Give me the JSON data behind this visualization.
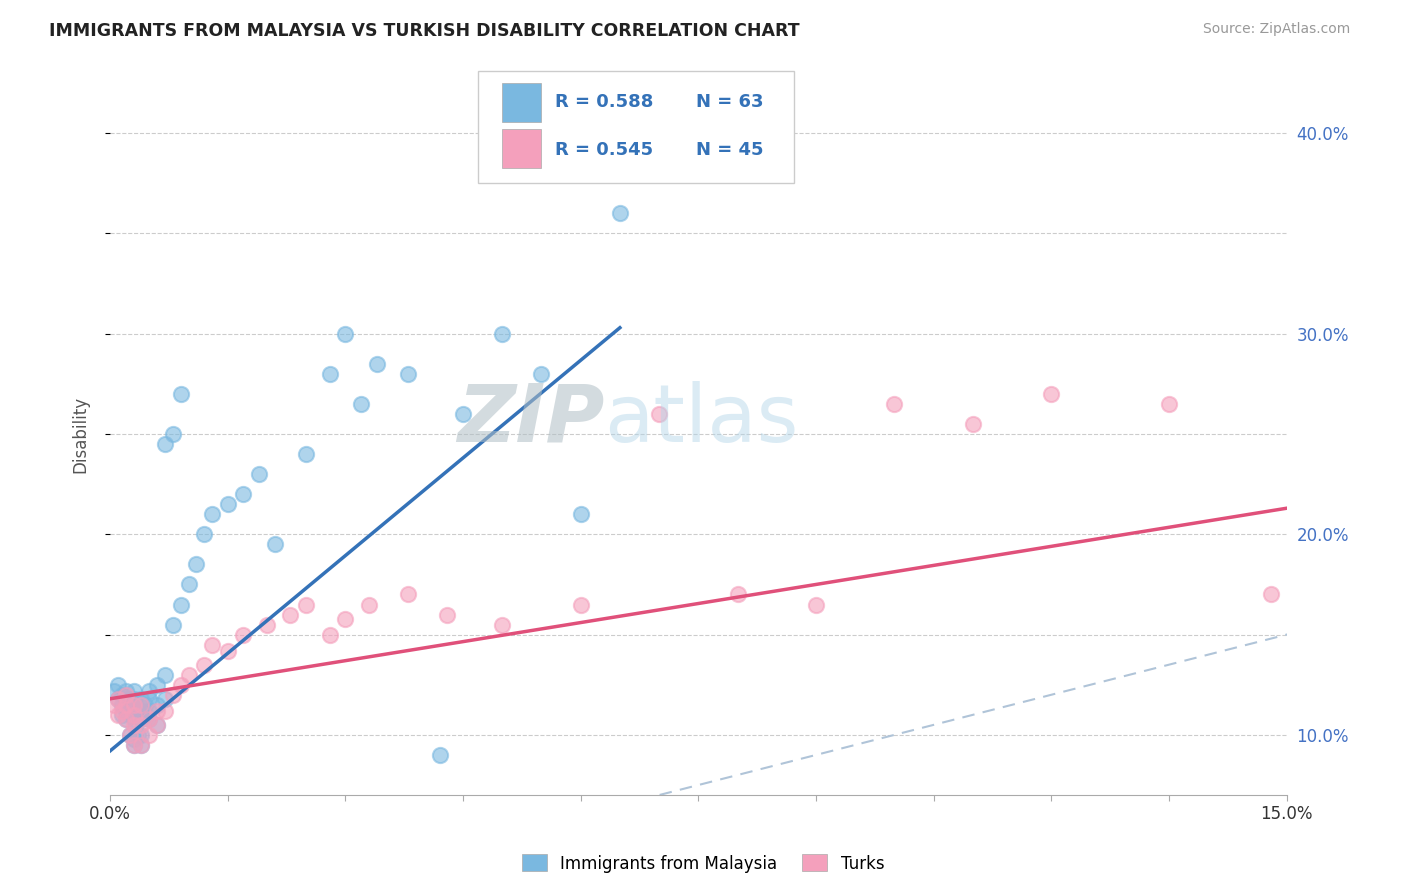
{
  "title": "IMMIGRANTS FROM MALAYSIA VS TURKISH DISABILITY CORRELATION CHART",
  "source": "Source: ZipAtlas.com",
  "ylabel": "Disability",
  "xlim": [
    0.0,
    0.15
  ],
  "ylim": [
    0.07,
    0.43
  ],
  "xticks": [
    0.0,
    0.015,
    0.03,
    0.045,
    0.06,
    0.075,
    0.09,
    0.105,
    0.12,
    0.135,
    0.15
  ],
  "xtick_labels": [
    "0.0%",
    "",
    "",
    "",
    "",
    "",
    "",
    "",
    "",
    "",
    "15.0%"
  ],
  "yticks": [
    0.1,
    0.15,
    0.2,
    0.25,
    0.3,
    0.35,
    0.4
  ],
  "ytick_labels": [
    "10.0%",
    "",
    "20.0%",
    "",
    "30.0%",
    "",
    "40.0%"
  ],
  "blue_color": "#7ab8e0",
  "pink_color": "#f4a0bc",
  "blue_line_color": "#3472b8",
  "pink_line_color": "#e0507a",
  "diagonal_color": "#b0c4d8",
  "watermark_zip": "ZIP",
  "watermark_atlas": "atlas",
  "legend_r1": "R = 0.588",
  "legend_n1": "N = 63",
  "legend_r2": "R = 0.545",
  "legend_n2": "N = 45",
  "blue_line_x0": 0.0,
  "blue_line_y0": 0.092,
  "blue_line_x1": 0.065,
  "blue_line_y1": 0.303,
  "pink_line_x0": 0.0,
  "pink_line_x1": 0.15,
  "pink_line_y0": 0.118,
  "pink_line_y1": 0.213,
  "blue_scatter_x": [
    0.0005,
    0.001,
    0.001,
    0.0015,
    0.0015,
    0.0015,
    0.002,
    0.002,
    0.002,
    0.002,
    0.002,
    0.0025,
    0.0025,
    0.0025,
    0.003,
    0.003,
    0.003,
    0.003,
    0.003,
    0.003,
    0.003,
    0.0035,
    0.0035,
    0.004,
    0.004,
    0.004,
    0.004,
    0.004,
    0.0045,
    0.005,
    0.005,
    0.005,
    0.005,
    0.006,
    0.006,
    0.006,
    0.007,
    0.007,
    0.008,
    0.009,
    0.01,
    0.011,
    0.012,
    0.013,
    0.015,
    0.017,
    0.019,
    0.021,
    0.025,
    0.028,
    0.03,
    0.032,
    0.034,
    0.038,
    0.042,
    0.045,
    0.05,
    0.055,
    0.06,
    0.065,
    0.007,
    0.008,
    0.009
  ],
  "blue_scatter_y": [
    0.122,
    0.118,
    0.125,
    0.11,
    0.115,
    0.12,
    0.108,
    0.112,
    0.115,
    0.118,
    0.122,
    0.1,
    0.112,
    0.118,
    0.095,
    0.098,
    0.108,
    0.112,
    0.115,
    0.118,
    0.122,
    0.1,
    0.112,
    0.095,
    0.1,
    0.108,
    0.112,
    0.118,
    0.115,
    0.108,
    0.112,
    0.118,
    0.122,
    0.105,
    0.115,
    0.125,
    0.118,
    0.13,
    0.155,
    0.165,
    0.175,
    0.185,
    0.2,
    0.21,
    0.215,
    0.22,
    0.23,
    0.195,
    0.24,
    0.28,
    0.3,
    0.265,
    0.285,
    0.28,
    0.09,
    0.26,
    0.3,
    0.28,
    0.21,
    0.36,
    0.245,
    0.25,
    0.27
  ],
  "pink_scatter_x": [
    0.0005,
    0.001,
    0.001,
    0.0015,
    0.002,
    0.002,
    0.002,
    0.0025,
    0.003,
    0.003,
    0.003,
    0.003,
    0.004,
    0.004,
    0.004,
    0.005,
    0.005,
    0.006,
    0.006,
    0.007,
    0.008,
    0.009,
    0.01,
    0.012,
    0.013,
    0.015,
    0.017,
    0.02,
    0.023,
    0.025,
    0.028,
    0.03,
    0.033,
    0.038,
    0.043,
    0.05,
    0.06,
    0.07,
    0.08,
    0.09,
    0.1,
    0.11,
    0.12,
    0.135,
    0.148
  ],
  "pink_scatter_y": [
    0.115,
    0.11,
    0.118,
    0.112,
    0.108,
    0.115,
    0.12,
    0.1,
    0.095,
    0.105,
    0.11,
    0.115,
    0.095,
    0.105,
    0.115,
    0.1,
    0.108,
    0.105,
    0.112,
    0.112,
    0.12,
    0.125,
    0.13,
    0.135,
    0.145,
    0.142,
    0.15,
    0.155,
    0.16,
    0.165,
    0.15,
    0.158,
    0.165,
    0.17,
    0.16,
    0.155,
    0.165,
    0.26,
    0.17,
    0.165,
    0.265,
    0.255,
    0.27,
    0.265,
    0.17
  ]
}
